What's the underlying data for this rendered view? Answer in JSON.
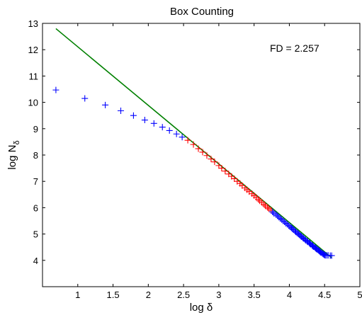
{
  "chart_data": {
    "type": "scatter",
    "title": "Box Counting",
    "xlabel_main": "log ",
    "xlabel_symbol": "δ",
    "ylabel_main": "log N",
    "ylabel_subscript": "δ",
    "annotation": "FD = 2.257",
    "xlim": [
      0.5,
      5
    ],
    "ylim": [
      3,
      13
    ],
    "xticks": [
      1,
      1.5,
      2,
      2.5,
      3,
      3.5,
      4,
      4.5,
      5
    ],
    "xtick_labels": [
      "1",
      "1.5",
      "2",
      "2.5",
      "3",
      "3.5",
      "4",
      "4.5",
      "5"
    ],
    "yticks": [
      4,
      5,
      6,
      7,
      8,
      9,
      10,
      11,
      12,
      13
    ],
    "ytick_labels": [
      "4",
      "5",
      "6",
      "7",
      "8",
      "9",
      "10",
      "11",
      "12",
      "13"
    ],
    "grid": false,
    "fit_line": {
      "color": "#008000",
      "x": [
        0.69,
        4.6
      ],
      "y": [
        12.8,
        4.1
      ]
    },
    "series": [
      {
        "color": "#0000ff",
        "marker": "plus",
        "points": [
          [
            0.69,
            10.47
          ],
          [
            1.1,
            10.15
          ],
          [
            1.39,
            9.9
          ],
          [
            1.61,
            9.68
          ],
          [
            1.79,
            9.5
          ],
          [
            1.95,
            9.33
          ],
          [
            2.08,
            9.2
          ],
          [
            2.2,
            9.06
          ],
          [
            2.3,
            8.93
          ],
          [
            2.4,
            8.8
          ],
          [
            2.48,
            8.68
          ]
        ]
      },
      {
        "color": "#ff0000",
        "marker": "plus",
        "points": [
          [
            2.56,
            8.56
          ],
          [
            2.64,
            8.4
          ],
          [
            2.71,
            8.24
          ],
          [
            2.77,
            8.11
          ],
          [
            2.83,
            7.98
          ],
          [
            2.89,
            7.85
          ],
          [
            2.94,
            7.74
          ],
          [
            3.0,
            7.6
          ],
          [
            3.04,
            7.5
          ],
          [
            3.09,
            7.39
          ],
          [
            3.14,
            7.28
          ],
          [
            3.18,
            7.19
          ],
          [
            3.22,
            7.1
          ],
          [
            3.26,
            7.0
          ],
          [
            3.3,
            6.92
          ],
          [
            3.33,
            6.84
          ],
          [
            3.37,
            6.75
          ],
          [
            3.4,
            6.68
          ],
          [
            3.43,
            6.61
          ],
          [
            3.47,
            6.53
          ],
          [
            3.5,
            6.46
          ],
          [
            3.53,
            6.39
          ],
          [
            3.56,
            6.32
          ],
          [
            3.58,
            6.26
          ],
          [
            3.61,
            6.2
          ],
          [
            3.64,
            6.13
          ],
          [
            3.66,
            6.07
          ],
          [
            3.69,
            6.01
          ],
          [
            3.71,
            5.96
          ],
          [
            3.74,
            5.9
          ]
        ]
      },
      {
        "color": "#0000ff",
        "marker": "plus",
        "points": [
          [
            3.76,
            5.84
          ],
          [
            3.78,
            5.79
          ],
          [
            3.81,
            5.74
          ],
          [
            3.83,
            5.69
          ],
          [
            3.85,
            5.64
          ],
          [
            3.87,
            5.59
          ],
          [
            3.89,
            5.55
          ],
          [
            3.91,
            5.5
          ],
          [
            3.93,
            5.46
          ],
          [
            3.95,
            5.41
          ],
          [
            3.97,
            5.37
          ],
          [
            3.99,
            5.32
          ],
          [
            4.01,
            5.28
          ],
          [
            4.03,
            5.24
          ],
          [
            4.04,
            5.2
          ],
          [
            4.06,
            5.16
          ],
          [
            4.08,
            5.12
          ],
          [
            4.09,
            5.08
          ],
          [
            4.11,
            5.04
          ],
          [
            4.13,
            5.01
          ],
          [
            4.14,
            4.97
          ],
          [
            4.16,
            4.93
          ],
          [
            4.17,
            4.9
          ],
          [
            4.19,
            4.86
          ],
          [
            4.2,
            4.83
          ],
          [
            4.22,
            4.8
          ],
          [
            4.23,
            4.76
          ],
          [
            4.25,
            4.73
          ],
          [
            4.26,
            4.7
          ],
          [
            4.28,
            4.67
          ],
          [
            4.29,
            4.64
          ],
          [
            4.3,
            4.61
          ],
          [
            4.32,
            4.58
          ],
          [
            4.33,
            4.55
          ],
          [
            4.34,
            4.52
          ],
          [
            4.36,
            4.5
          ],
          [
            4.37,
            4.47
          ],
          [
            4.38,
            4.44
          ],
          [
            4.39,
            4.42
          ],
          [
            4.41,
            4.39
          ],
          [
            4.42,
            4.36
          ],
          [
            4.43,
            4.34
          ],
          [
            4.44,
            4.31
          ],
          [
            4.45,
            4.29
          ],
          [
            4.47,
            4.26
          ],
          [
            4.48,
            4.24
          ],
          [
            4.49,
            4.22
          ],
          [
            4.5,
            4.2
          ],
          [
            4.51,
            4.19
          ],
          [
            4.53,
            4.19
          ],
          [
            4.55,
            4.19
          ],
          [
            4.58,
            4.18
          ],
          [
            4.6,
            4.18
          ]
        ]
      }
    ]
  }
}
